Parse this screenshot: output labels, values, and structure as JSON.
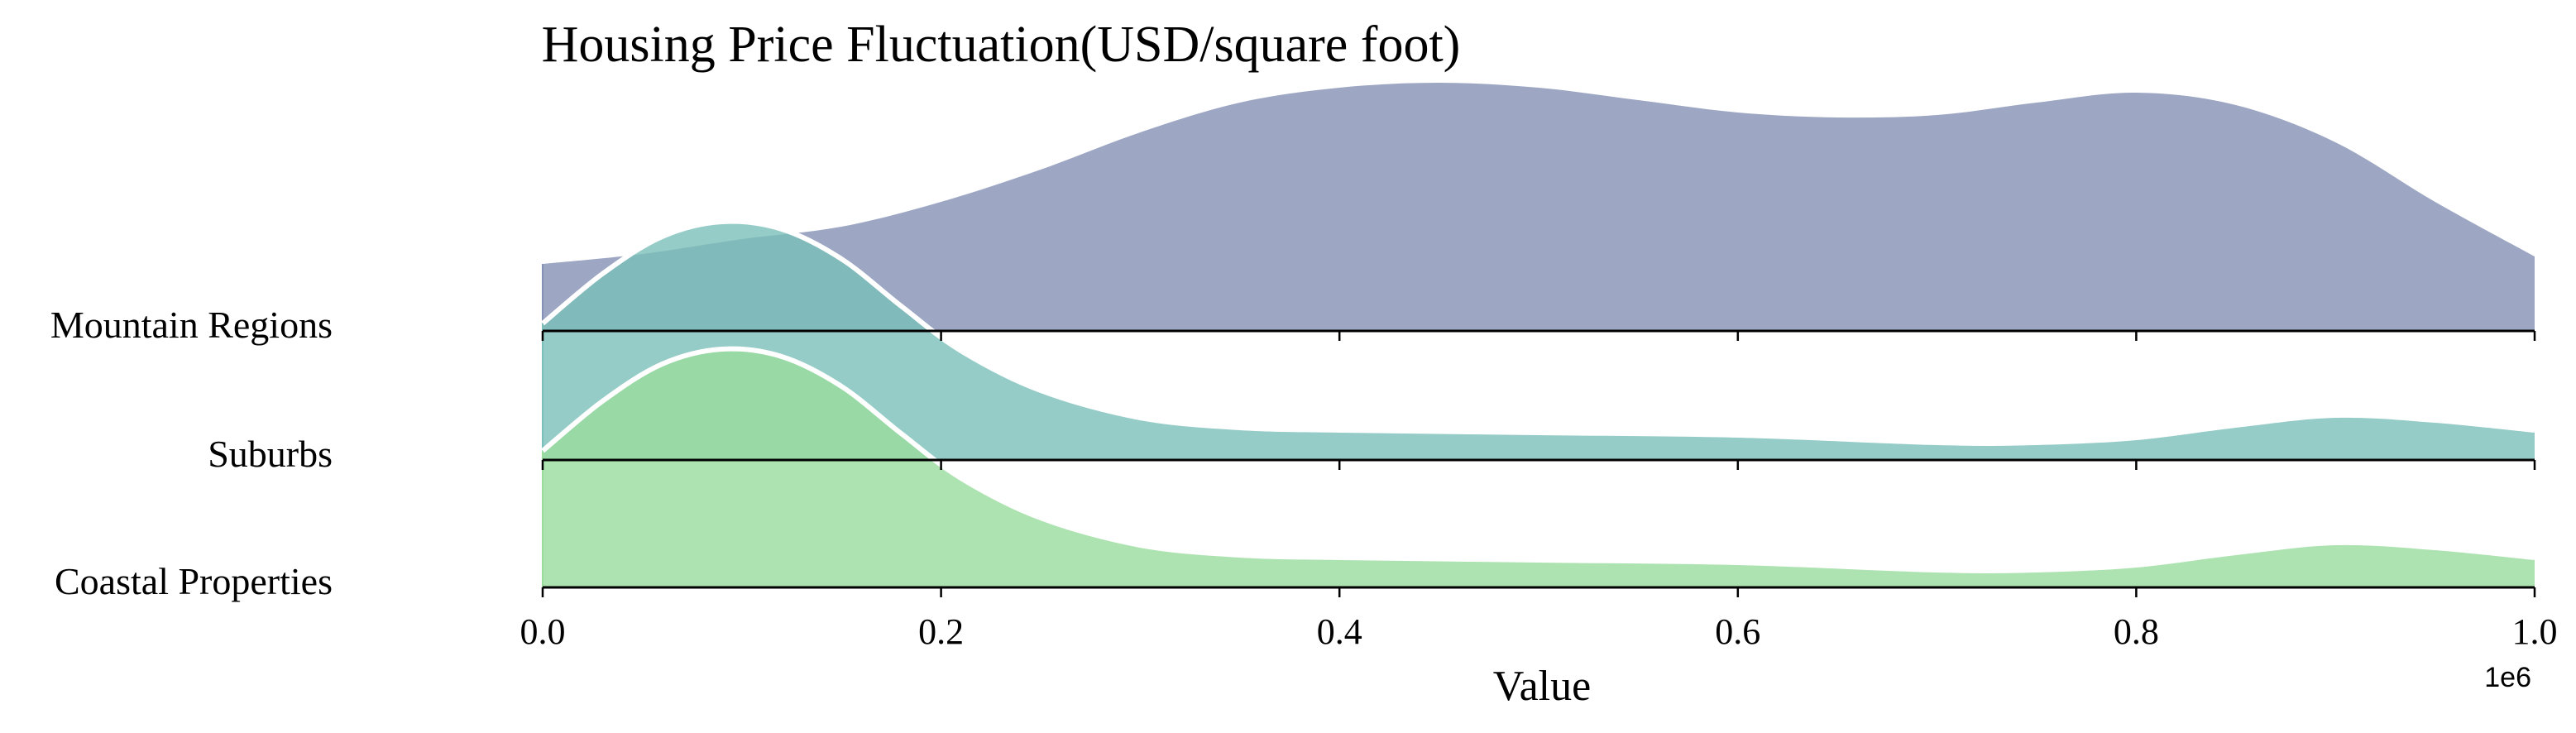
{
  "chart_data": {
    "type": "area",
    "subtype": "ridgeline-kde",
    "title": "Housing Price Fluctuation(USD/square foot)",
    "xlabel": "Value",
    "x_offset_label": "1e6",
    "xlim": [
      0,
      1000000
    ],
    "x_ticks": [
      0,
      200000,
      400000,
      600000,
      800000,
      1000000
    ],
    "x_tick_labels": [
      "0.0",
      "0.2",
      "0.4",
      "0.6",
      "0.8",
      "1.0"
    ],
    "grid": false,
    "legend": "none",
    "series": [
      {
        "name": "Mountain Regions",
        "color": "#8591b5",
        "density": [
          [
            0,
            0.27
          ],
          [
            50000,
            0.31
          ],
          [
            100000,
            0.37
          ],
          [
            150000,
            0.42
          ],
          [
            200000,
            0.52
          ],
          [
            250000,
            0.65
          ],
          [
            300000,
            0.8
          ],
          [
            350000,
            0.92
          ],
          [
            400000,
            0.98
          ],
          [
            450000,
            1.0
          ],
          [
            500000,
            0.98
          ],
          [
            550000,
            0.93
          ],
          [
            600000,
            0.88
          ],
          [
            650000,
            0.86
          ],
          [
            700000,
            0.87
          ],
          [
            750000,
            0.92
          ],
          [
            800000,
            0.96
          ],
          [
            850000,
            0.91
          ],
          [
            900000,
            0.76
          ],
          [
            950000,
            0.52
          ],
          [
            1000000,
            0.3
          ]
        ]
      },
      {
        "name": "Suburbs",
        "color": "#7abfb9",
        "density": [
          [
            0,
            0.55
          ],
          [
            30000,
            0.75
          ],
          [
            60000,
            0.9
          ],
          [
            90000,
            0.96
          ],
          [
            120000,
            0.93
          ],
          [
            150000,
            0.81
          ],
          [
            180000,
            0.62
          ],
          [
            210000,
            0.44
          ],
          [
            250000,
            0.28
          ],
          [
            300000,
            0.17
          ],
          [
            350000,
            0.13
          ],
          [
            400000,
            0.12
          ],
          [
            500000,
            0.11
          ],
          [
            600000,
            0.1
          ],
          [
            700000,
            0.07
          ],
          [
            750000,
            0.07
          ],
          [
            800000,
            0.09
          ],
          [
            850000,
            0.14
          ],
          [
            900000,
            0.18
          ],
          [
            950000,
            0.16
          ],
          [
            1000000,
            0.12
          ]
        ]
      },
      {
        "name": "Coastal Properties",
        "color": "#99dc9c",
        "density": [
          [
            0,
            0.55
          ],
          [
            30000,
            0.75
          ],
          [
            60000,
            0.9
          ],
          [
            90000,
            0.96
          ],
          [
            120000,
            0.93
          ],
          [
            150000,
            0.81
          ],
          [
            180000,
            0.62
          ],
          [
            210000,
            0.44
          ],
          [
            250000,
            0.28
          ],
          [
            300000,
            0.17
          ],
          [
            350000,
            0.13
          ],
          [
            400000,
            0.12
          ],
          [
            500000,
            0.11
          ],
          [
            600000,
            0.1
          ],
          [
            700000,
            0.07
          ],
          [
            750000,
            0.07
          ],
          [
            800000,
            0.09
          ],
          [
            850000,
            0.14
          ],
          [
            900000,
            0.18
          ],
          [
            950000,
            0.16
          ],
          [
            1000000,
            0.12
          ]
        ]
      }
    ]
  }
}
